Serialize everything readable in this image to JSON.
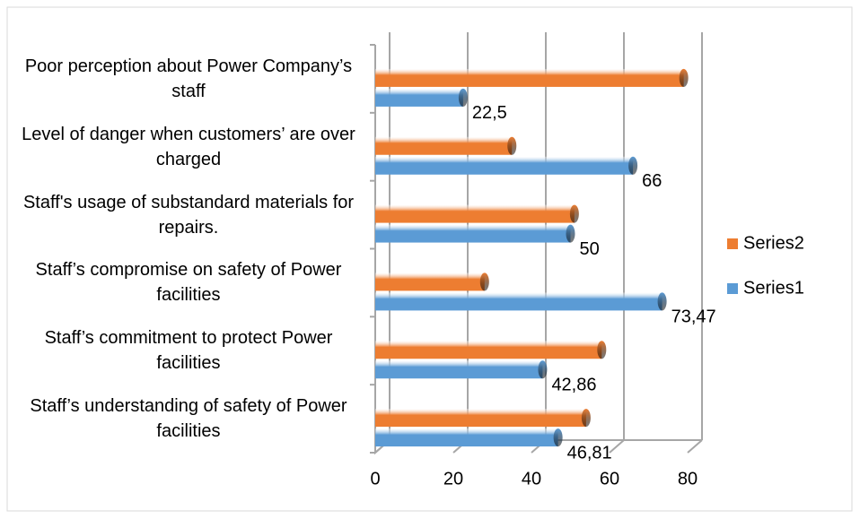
{
  "chart_data": {
    "type": "bar",
    "orientation": "horizontal",
    "categories": [
      "Poor perception about Power Company’s staff",
      "Level of danger when customers’ are over charged",
      "Staff's usage of substandard materials for repairs.",
      "Staff’s compromise on safety of Power facilities",
      "Staff’s commitment to protect Power facilities",
      "Staff’s understanding of safety of Power facilities"
    ],
    "series": [
      {
        "name": "Series2",
        "color": "#ed7d31",
        "values": [
          79,
          35,
          51,
          28,
          58,
          54
        ]
      },
      {
        "name": "Series1",
        "color": "#5b9bd5",
        "values": [
          22.5,
          66,
          50,
          73.47,
          42.86,
          46.81
        ],
        "value_labels": [
          "22,5",
          "66",
          "50",
          "73,47",
          "42,86",
          "46,81"
        ]
      }
    ],
    "xlim": [
      0,
      80
    ],
    "xticks": [
      0,
      20,
      40,
      60,
      80
    ],
    "grid": true,
    "legend": "right"
  }
}
